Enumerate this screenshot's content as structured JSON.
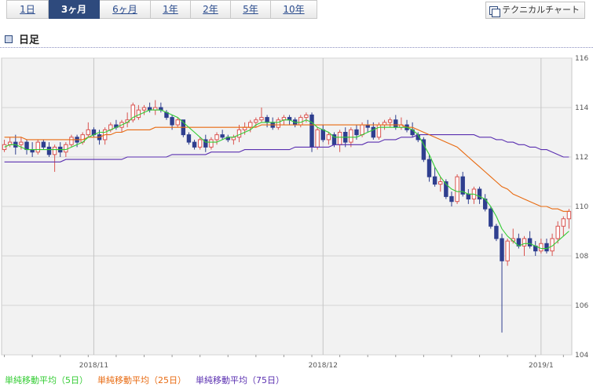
{
  "tabs": [
    {
      "label": "1日",
      "active": false
    },
    {
      "label": "3ヶ月",
      "active": true
    },
    {
      "label": "6ヶ月",
      "active": false
    },
    {
      "label": "1年",
      "active": false
    },
    {
      "label": "2年",
      "active": false
    },
    {
      "label": "5年",
      "active": false
    },
    {
      "label": "10年",
      "active": false
    }
  ],
  "technical_button_label": "テクニカルチャート",
  "section_title": "日足",
  "colors": {
    "up": "#d9534f",
    "down": "#2f3f8f",
    "ma5": "#33cc33",
    "ma25": "#e86a10",
    "ma75": "#5a2fb0",
    "plot_bg": "#f2f2f2"
  },
  "chart_data": {
    "type": "candlestick",
    "ylim": [
      104,
      116
    ],
    "y_ticks": [
      104,
      106,
      108,
      110,
      112,
      114,
      116
    ],
    "x_ticks": [
      {
        "index": 16,
        "label": "2018/11"
      },
      {
        "index": 57,
        "label": "2018/12"
      },
      {
        "index": 96,
        "label": "2019/1"
      }
    ],
    "legend": [
      {
        "label": "単純移動平均（5日）",
        "color_key": "ma5"
      },
      {
        "label": "単純移動平均（25日）",
        "color_key": "ma25"
      },
      {
        "label": "単純移動平均（75日）",
        "color_key": "ma75"
      }
    ],
    "candles": [
      [
        112.3,
        112.7,
        112.2,
        112.5
      ],
      [
        112.5,
        112.8,
        112.4,
        112.6
      ],
      [
        112.6,
        112.9,
        112.1,
        112.4
      ],
      [
        112.5,
        112.8,
        112.3,
        112.6
      ],
      [
        112.6,
        112.7,
        112.1,
        112.3
      ],
      [
        112.3,
        112.6,
        112.0,
        112.2
      ],
      [
        112.2,
        112.7,
        112.1,
        112.6
      ],
      [
        112.6,
        112.7,
        112.3,
        112.4
      ],
      [
        112.4,
        112.6,
        112.0,
        112.1
      ],
      [
        112.1,
        112.5,
        111.4,
        112.4
      ],
      [
        112.4,
        112.6,
        112.0,
        112.2
      ],
      [
        112.2,
        112.6,
        112.0,
        112.5
      ],
      [
        112.5,
        112.9,
        112.4,
        112.8
      ],
      [
        112.8,
        112.9,
        112.4,
        112.6
      ],
      [
        112.6,
        113.0,
        112.5,
        112.9
      ],
      [
        112.9,
        113.4,
        112.8,
        113.1
      ],
      [
        113.1,
        113.2,
        112.8,
        112.9
      ],
      [
        112.9,
        113.1,
        112.5,
        112.7
      ],
      [
        112.7,
        113.2,
        112.5,
        113.1
      ],
      [
        113.1,
        113.4,
        113.0,
        113.3
      ],
      [
        113.3,
        113.5,
        113.1,
        113.2
      ],
      [
        113.2,
        113.5,
        113.0,
        113.4
      ],
      [
        113.4,
        113.8,
        113.2,
        113.5
      ],
      [
        113.5,
        114.2,
        113.4,
        114.1
      ],
      [
        113.6,
        114.1,
        113.5,
        113.9
      ],
      [
        113.9,
        114.1,
        113.7,
        114.0
      ],
      [
        114.0,
        114.2,
        113.8,
        113.9
      ],
      [
        113.9,
        114.3,
        113.7,
        114.0
      ],
      [
        114.0,
        114.2,
        113.8,
        113.9
      ],
      [
        113.8,
        113.9,
        113.5,
        113.6
      ],
      [
        113.6,
        113.7,
        113.1,
        113.3
      ],
      [
        113.3,
        113.6,
        113.2,
        113.5
      ],
      [
        113.5,
        113.5,
        112.8,
        112.9
      ],
      [
        112.9,
        113.0,
        112.5,
        112.6
      ],
      [
        112.6,
        112.7,
        112.3,
        112.4
      ],
      [
        112.4,
        112.8,
        112.3,
        112.7
      ],
      [
        112.7,
        112.9,
        112.2,
        112.4
      ],
      [
        112.4,
        112.8,
        112.3,
        112.7
      ],
      [
        112.7,
        113.0,
        112.5,
        112.9
      ],
      [
        112.9,
        113.1,
        112.7,
        112.8
      ],
      [
        112.8,
        112.9,
        112.6,
        112.7
      ],
      [
        112.7,
        112.9,
        112.5,
        112.8
      ],
      [
        112.8,
        113.3,
        112.6,
        113.1
      ],
      [
        113.1,
        113.4,
        112.9,
        113.2
      ],
      [
        113.2,
        113.5,
        113.0,
        113.4
      ],
      [
        113.4,
        113.6,
        113.2,
        113.5
      ],
      [
        113.5,
        114.0,
        113.4,
        113.6
      ],
      [
        113.6,
        113.7,
        113.2,
        113.4
      ],
      [
        113.4,
        113.6,
        113.1,
        113.2
      ],
      [
        113.2,
        113.6,
        113.1,
        113.5
      ],
      [
        113.5,
        113.7,
        113.3,
        113.6
      ],
      [
        113.6,
        113.7,
        113.3,
        113.5
      ],
      [
        113.5,
        113.6,
        113.2,
        113.3
      ],
      [
        113.3,
        113.7,
        113.2,
        113.6
      ],
      [
        113.6,
        113.8,
        113.4,
        113.7
      ],
      [
        113.7,
        113.8,
        112.2,
        112.4
      ],
      [
        112.4,
        113.2,
        112.3,
        113.1
      ],
      [
        113.1,
        113.3,
        112.6,
        112.7
      ],
      [
        112.7,
        113.0,
        112.5,
        112.9
      ],
      [
        112.9,
        113.0,
        112.4,
        112.5
      ],
      [
        112.5,
        113.1,
        112.2,
        113.0
      ],
      [
        113.0,
        113.2,
        112.4,
        112.6
      ],
      [
        112.6,
        113.2,
        112.4,
        113.1
      ],
      [
        113.1,
        113.3,
        112.7,
        112.9
      ],
      [
        112.9,
        113.4,
        112.8,
        113.3
      ],
      [
        113.3,
        113.5,
        113.0,
        113.2
      ],
      [
        113.2,
        113.4,
        112.7,
        112.8
      ],
      [
        112.8,
        113.4,
        112.7,
        113.3
      ],
      [
        113.3,
        113.5,
        113.1,
        113.4
      ],
      [
        113.4,
        113.6,
        113.2,
        113.5
      ],
      [
        113.5,
        113.7,
        113.1,
        113.2
      ],
      [
        113.2,
        113.6,
        113.1,
        113.3
      ],
      [
        113.3,
        113.5,
        113.0,
        113.1
      ],
      [
        113.1,
        113.4,
        112.8,
        112.9
      ],
      [
        112.9,
        113.0,
        112.6,
        112.7
      ],
      [
        112.7,
        112.8,
        111.8,
        111.9
      ],
      [
        111.9,
        112.1,
        111.0,
        111.2
      ],
      [
        111.2,
        111.6,
        110.8,
        110.9
      ],
      [
        110.9,
        111.2,
        110.6,
        111.0
      ],
      [
        111.0,
        111.1,
        110.3,
        110.4
      ],
      [
        110.4,
        110.6,
        110.0,
        110.2
      ],
      [
        110.2,
        111.3,
        110.1,
        111.2
      ],
      [
        111.2,
        111.4,
        110.4,
        110.5
      ],
      [
        110.5,
        110.7,
        110.1,
        110.3
      ],
      [
        110.3,
        110.8,
        110.1,
        110.7
      ],
      [
        110.7,
        110.8,
        110.1,
        110.3
      ],
      [
        110.3,
        110.5,
        109.8,
        109.9
      ],
      [
        109.9,
        110.0,
        109.1,
        109.2
      ],
      [
        109.2,
        109.3,
        108.6,
        108.7
      ],
      [
        108.7,
        108.9,
        104.9,
        107.8
      ],
      [
        107.8,
        108.7,
        107.6,
        108.6
      ],
      [
        108.6,
        109.1,
        108.5,
        108.7
      ],
      [
        108.7,
        108.9,
        108.3,
        108.4
      ],
      [
        108.4,
        108.8,
        108.0,
        108.7
      ],
      [
        108.7,
        109.0,
        108.3,
        108.4
      ],
      [
        108.4,
        108.6,
        108.0,
        108.2
      ],
      [
        108.2,
        108.7,
        108.1,
        108.5
      ],
      [
        108.5,
        108.7,
        108.1,
        108.2
      ],
      [
        108.2,
        108.9,
        108.0,
        108.7
      ],
      [
        108.7,
        109.4,
        108.5,
        109.2
      ],
      [
        109.2,
        109.6,
        108.8,
        109.5
      ],
      [
        109.5,
        109.9,
        109.1,
        109.8
      ]
    ],
    "ma5": [
      112.4,
      112.5,
      112.5,
      112.4,
      112.3,
      112.3,
      112.3,
      112.3,
      112.3,
      112.3,
      112.3,
      112.3,
      112.4,
      112.5,
      112.6,
      112.8,
      112.9,
      113.0,
      113.0,
      113.1,
      113.2,
      113.3,
      113.4,
      113.6,
      113.7,
      113.8,
      113.9,
      113.9,
      113.9,
      113.8,
      113.7,
      113.6,
      113.4,
      113.2,
      113.0,
      112.8,
      112.6,
      112.6,
      112.6,
      112.7,
      112.8,
      112.8,
      112.9,
      113.0,
      113.1,
      113.3,
      113.4,
      113.4,
      113.4,
      113.4,
      113.5,
      113.5,
      113.4,
      113.4,
      113.5,
      113.4,
      113.2,
      113.1,
      113.0,
      112.8,
      112.8,
      112.8,
      112.8,
      112.8,
      112.9,
      113.0,
      113.1,
      113.2,
      113.2,
      113.2,
      113.2,
      113.2,
      113.2,
      113.1,
      112.9,
      112.5,
      112.1,
      111.6,
      111.2,
      110.9,
      110.7,
      110.6,
      110.6,
      110.5,
      110.5,
      110.4,
      110.3,
      110.0,
      109.6,
      109.1,
      108.8,
      108.6,
      108.4,
      108.5,
      108.5,
      108.4,
      108.3,
      108.3,
      108.4,
      108.6,
      108.8,
      109.0
    ],
    "ma25": [
      112.8,
      112.8,
      112.8,
      112.8,
      112.7,
      112.7,
      112.7,
      112.7,
      112.7,
      112.7,
      112.7,
      112.7,
      112.7,
      112.7,
      112.7,
      112.8,
      112.8,
      112.8,
      112.9,
      112.9,
      113.0,
      113.0,
      113.1,
      113.1,
      113.1,
      113.1,
      113.1,
      113.2,
      113.2,
      113.2,
      113.2,
      113.2,
      113.2,
      113.2,
      113.2,
      113.2,
      113.2,
      113.2,
      113.2,
      113.2,
      113.2,
      113.2,
      113.2,
      113.2,
      113.2,
      113.2,
      113.3,
      113.3,
      113.3,
      113.3,
      113.3,
      113.3,
      113.3,
      113.3,
      113.3,
      113.3,
      113.3,
      113.3,
      113.3,
      113.3,
      113.3,
      113.3,
      113.3,
      113.3,
      113.3,
      113.3,
      113.3,
      113.3,
      113.3,
      113.3,
      113.3,
      113.3,
      113.2,
      113.2,
      113.1,
      113.0,
      112.9,
      112.8,
      112.7,
      112.6,
      112.5,
      112.4,
      112.2,
      112.0,
      111.8,
      111.6,
      111.4,
      111.2,
      111.0,
      110.8,
      110.7,
      110.5,
      110.4,
      110.3,
      110.2,
      110.1,
      110.0,
      110.0,
      109.9,
      109.9,
      109.8,
      109.8
    ],
    "ma75": [
      111.8,
      111.8,
      111.8,
      111.8,
      111.8,
      111.8,
      111.8,
      111.8,
      111.8,
      111.8,
      111.8,
      111.9,
      111.9,
      111.9,
      111.9,
      111.9,
      111.9,
      111.9,
      111.9,
      111.9,
      111.9,
      111.9,
      112.0,
      112.0,
      112.0,
      112.0,
      112.0,
      112.0,
      112.0,
      112.0,
      112.1,
      112.1,
      112.1,
      112.1,
      112.1,
      112.1,
      112.1,
      112.2,
      112.2,
      112.2,
      112.2,
      112.2,
      112.2,
      112.3,
      112.3,
      112.3,
      112.3,
      112.3,
      112.3,
      112.3,
      112.3,
      112.3,
      112.4,
      112.4,
      112.4,
      112.4,
      112.4,
      112.4,
      112.4,
      112.5,
      112.5,
      112.5,
      112.5,
      112.5,
      112.5,
      112.6,
      112.6,
      112.6,
      112.7,
      112.7,
      112.7,
      112.8,
      112.8,
      112.8,
      112.9,
      112.9,
      112.9,
      112.9,
      112.9,
      112.9,
      112.9,
      112.9,
      112.9,
      112.9,
      112.9,
      112.8,
      112.8,
      112.8,
      112.7,
      112.7,
      112.6,
      112.6,
      112.5,
      112.5,
      112.4,
      112.4,
      112.3,
      112.3,
      112.2,
      112.1,
      112.0,
      112.0
    ]
  }
}
